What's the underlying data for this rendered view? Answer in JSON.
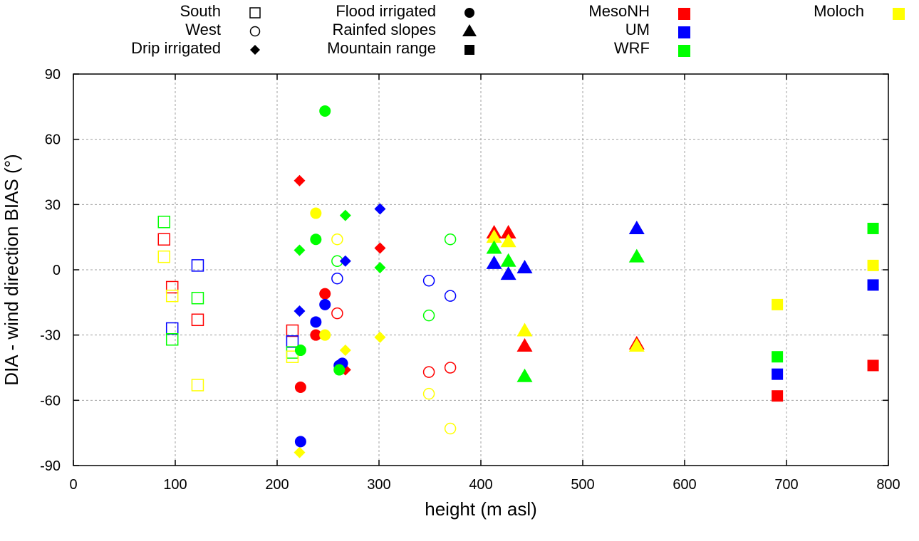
{
  "chart_data": {
    "type": "scatter",
    "title": "",
    "xlabel": "height (m asl)",
    "ylabel": "DIA - wind direction BIAS (°)",
    "xlim": [
      0,
      800
    ],
    "ylim": [
      -90,
      90
    ],
    "xticks": [
      0,
      100,
      200,
      300,
      400,
      500,
      600,
      700,
      800
    ],
    "yticks": [
      -90,
      -60,
      -30,
      0,
      30,
      60,
      90
    ],
    "grid": true,
    "legend_placement": "top, outside plot",
    "legend_shapes": [
      {
        "label": "South",
        "shape": "open-square"
      },
      {
        "label": "West",
        "shape": "open-circle"
      },
      {
        "label": "Drip irrigated",
        "shape": "filled-diamond"
      },
      {
        "label": "Flood irrigated",
        "shape": "filled-circle"
      },
      {
        "label": "Rainfed slopes",
        "shape": "filled-triangle"
      },
      {
        "label": "Mountain range",
        "shape": "filled-square"
      }
    ],
    "legend_models": [
      {
        "label": "MesoNH",
        "color": "#ff0000"
      },
      {
        "label": "UM",
        "color": "#0000ff"
      },
      {
        "label": "WRF",
        "color": "#00ff00"
      },
      {
        "label": "Moloch",
        "color": "#ffff00"
      }
    ],
    "series": [
      {
        "name": "South",
        "shape": "open-square",
        "points": [
          {
            "model": "WRF",
            "x": 89,
            "y": 22
          },
          {
            "model": "MesoNH",
            "x": 89,
            "y": 14
          },
          {
            "model": "Moloch",
            "x": 89,
            "y": 6
          },
          {
            "model": "MesoNH",
            "x": 97,
            "y": -8
          },
          {
            "model": "Moloch",
            "x": 97,
            "y": -12
          },
          {
            "model": "UM",
            "x": 97,
            "y": -27
          },
          {
            "model": "WRF",
            "x": 97,
            "y": -32
          },
          {
            "model": "UM",
            "x": 122,
            "y": 2
          },
          {
            "model": "WRF",
            "x": 122,
            "y": -13
          },
          {
            "model": "MesoNH",
            "x": 122,
            "y": -23
          },
          {
            "model": "Moloch",
            "x": 122,
            "y": -53
          },
          {
            "model": "MesoNH",
            "x": 215,
            "y": -28
          },
          {
            "model": "UM",
            "x": 215,
            "y": -33
          },
          {
            "model": "WRF",
            "x": 215,
            "y": -38
          },
          {
            "model": "Moloch",
            "x": 215,
            "y": -40
          }
        ]
      },
      {
        "name": "West",
        "shape": "open-circle",
        "points": [
          {
            "model": "Moloch",
            "x": 259,
            "y": 14
          },
          {
            "model": "WRF",
            "x": 259,
            "y": 4
          },
          {
            "model": "UM",
            "x": 259,
            "y": -4
          },
          {
            "model": "MesoNH",
            "x": 259,
            "y": -20
          },
          {
            "model": "UM",
            "x": 349,
            "y": -5
          },
          {
            "model": "WRF",
            "x": 349,
            "y": -21
          },
          {
            "model": "MesoNH",
            "x": 349,
            "y": -47
          },
          {
            "model": "Moloch",
            "x": 349,
            "y": -57
          },
          {
            "model": "WRF",
            "x": 370,
            "y": 14
          },
          {
            "model": "UM",
            "x": 370,
            "y": -12
          },
          {
            "model": "MesoNH",
            "x": 370,
            "y": -45
          },
          {
            "model": "Moloch",
            "x": 370,
            "y": -73
          }
        ]
      },
      {
        "name": "Drip irrigated",
        "shape": "filled-diamond",
        "points": [
          {
            "model": "MesoNH",
            "x": 222,
            "y": 41
          },
          {
            "model": "WRF",
            "x": 222,
            "y": 9
          },
          {
            "model": "UM",
            "x": 222,
            "y": -19
          },
          {
            "model": "Moloch",
            "x": 222,
            "y": -84
          },
          {
            "model": "WRF",
            "x": 267,
            "y": 25
          },
          {
            "model": "UM",
            "x": 267,
            "y": 4
          },
          {
            "model": "Moloch",
            "x": 267,
            "y": -37
          },
          {
            "model": "MesoNH",
            "x": 267,
            "y": -46
          },
          {
            "model": "UM",
            "x": 301,
            "y": 28
          },
          {
            "model": "MesoNH",
            "x": 301,
            "y": 10
          },
          {
            "model": "WRF",
            "x": 301,
            "y": 1
          },
          {
            "model": "Moloch",
            "x": 301,
            "y": -31
          }
        ]
      },
      {
        "name": "Flood irrigated",
        "shape": "filled-circle",
        "points": [
          {
            "model": "WRF",
            "x": 247,
            "y": 73
          },
          {
            "model": "Moloch",
            "x": 238,
            "y": 26
          },
          {
            "model": "WRF",
            "x": 238,
            "y": 14
          },
          {
            "model": "MesoNH",
            "x": 247,
            "y": -11
          },
          {
            "model": "UM",
            "x": 247,
            "y": -16
          },
          {
            "model": "UM",
            "x": 238,
            "y": -24
          },
          {
            "model": "MesoNH",
            "x": 238,
            "y": -30
          },
          {
            "model": "Moloch",
            "x": 247,
            "y": -30
          },
          {
            "model": "WRF",
            "x": 223,
            "y": -37
          },
          {
            "model": "UM",
            "x": 264,
            "y": -43
          },
          {
            "model": "UM",
            "x": 261,
            "y": -44
          },
          {
            "model": "WRF",
            "x": 261,
            "y": -46
          },
          {
            "model": "MesoNH",
            "x": 223,
            "y": -54
          },
          {
            "model": "UM",
            "x": 223,
            "y": -79
          }
        ]
      },
      {
        "name": "Rainfed slopes",
        "shape": "filled-triangle",
        "points": [
          {
            "model": "MesoNH",
            "x": 413,
            "y": 17
          },
          {
            "model": "Moloch",
            "x": 413,
            "y": 15
          },
          {
            "model": "WRF",
            "x": 413,
            "y": 10
          },
          {
            "model": "UM",
            "x": 413,
            "y": 3
          },
          {
            "model": "MesoNH",
            "x": 427,
            "y": 17
          },
          {
            "model": "Moloch",
            "x": 427,
            "y": 13
          },
          {
            "model": "WRF",
            "x": 427,
            "y": 4
          },
          {
            "model": "UM",
            "x": 427,
            "y": -2
          },
          {
            "model": "UM",
            "x": 443,
            "y": 1
          },
          {
            "model": "Moloch",
            "x": 443,
            "y": -28
          },
          {
            "model": "MesoNH",
            "x": 443,
            "y": -35
          },
          {
            "model": "WRF",
            "x": 443,
            "y": -49
          },
          {
            "model": "UM",
            "x": 553,
            "y": 19
          },
          {
            "model": "WRF",
            "x": 553,
            "y": 6
          },
          {
            "model": "MesoNH",
            "x": 553,
            "y": -34
          },
          {
            "model": "Moloch",
            "x": 553,
            "y": -35
          }
        ]
      },
      {
        "name": "Mountain range",
        "shape": "filled-square",
        "points": [
          {
            "model": "Moloch",
            "x": 691,
            "y": -16
          },
          {
            "model": "WRF",
            "x": 691,
            "y": -40
          },
          {
            "model": "UM",
            "x": 691,
            "y": -48
          },
          {
            "model": "MesoNH",
            "x": 691,
            "y": -58
          },
          {
            "model": "WRF",
            "x": 785,
            "y": 19
          },
          {
            "model": "Moloch",
            "x": 785,
            "y": 2
          },
          {
            "model": "UM",
            "x": 785,
            "y": -7
          },
          {
            "model": "MesoNH",
            "x": 785,
            "y": -44
          }
        ]
      }
    ]
  }
}
